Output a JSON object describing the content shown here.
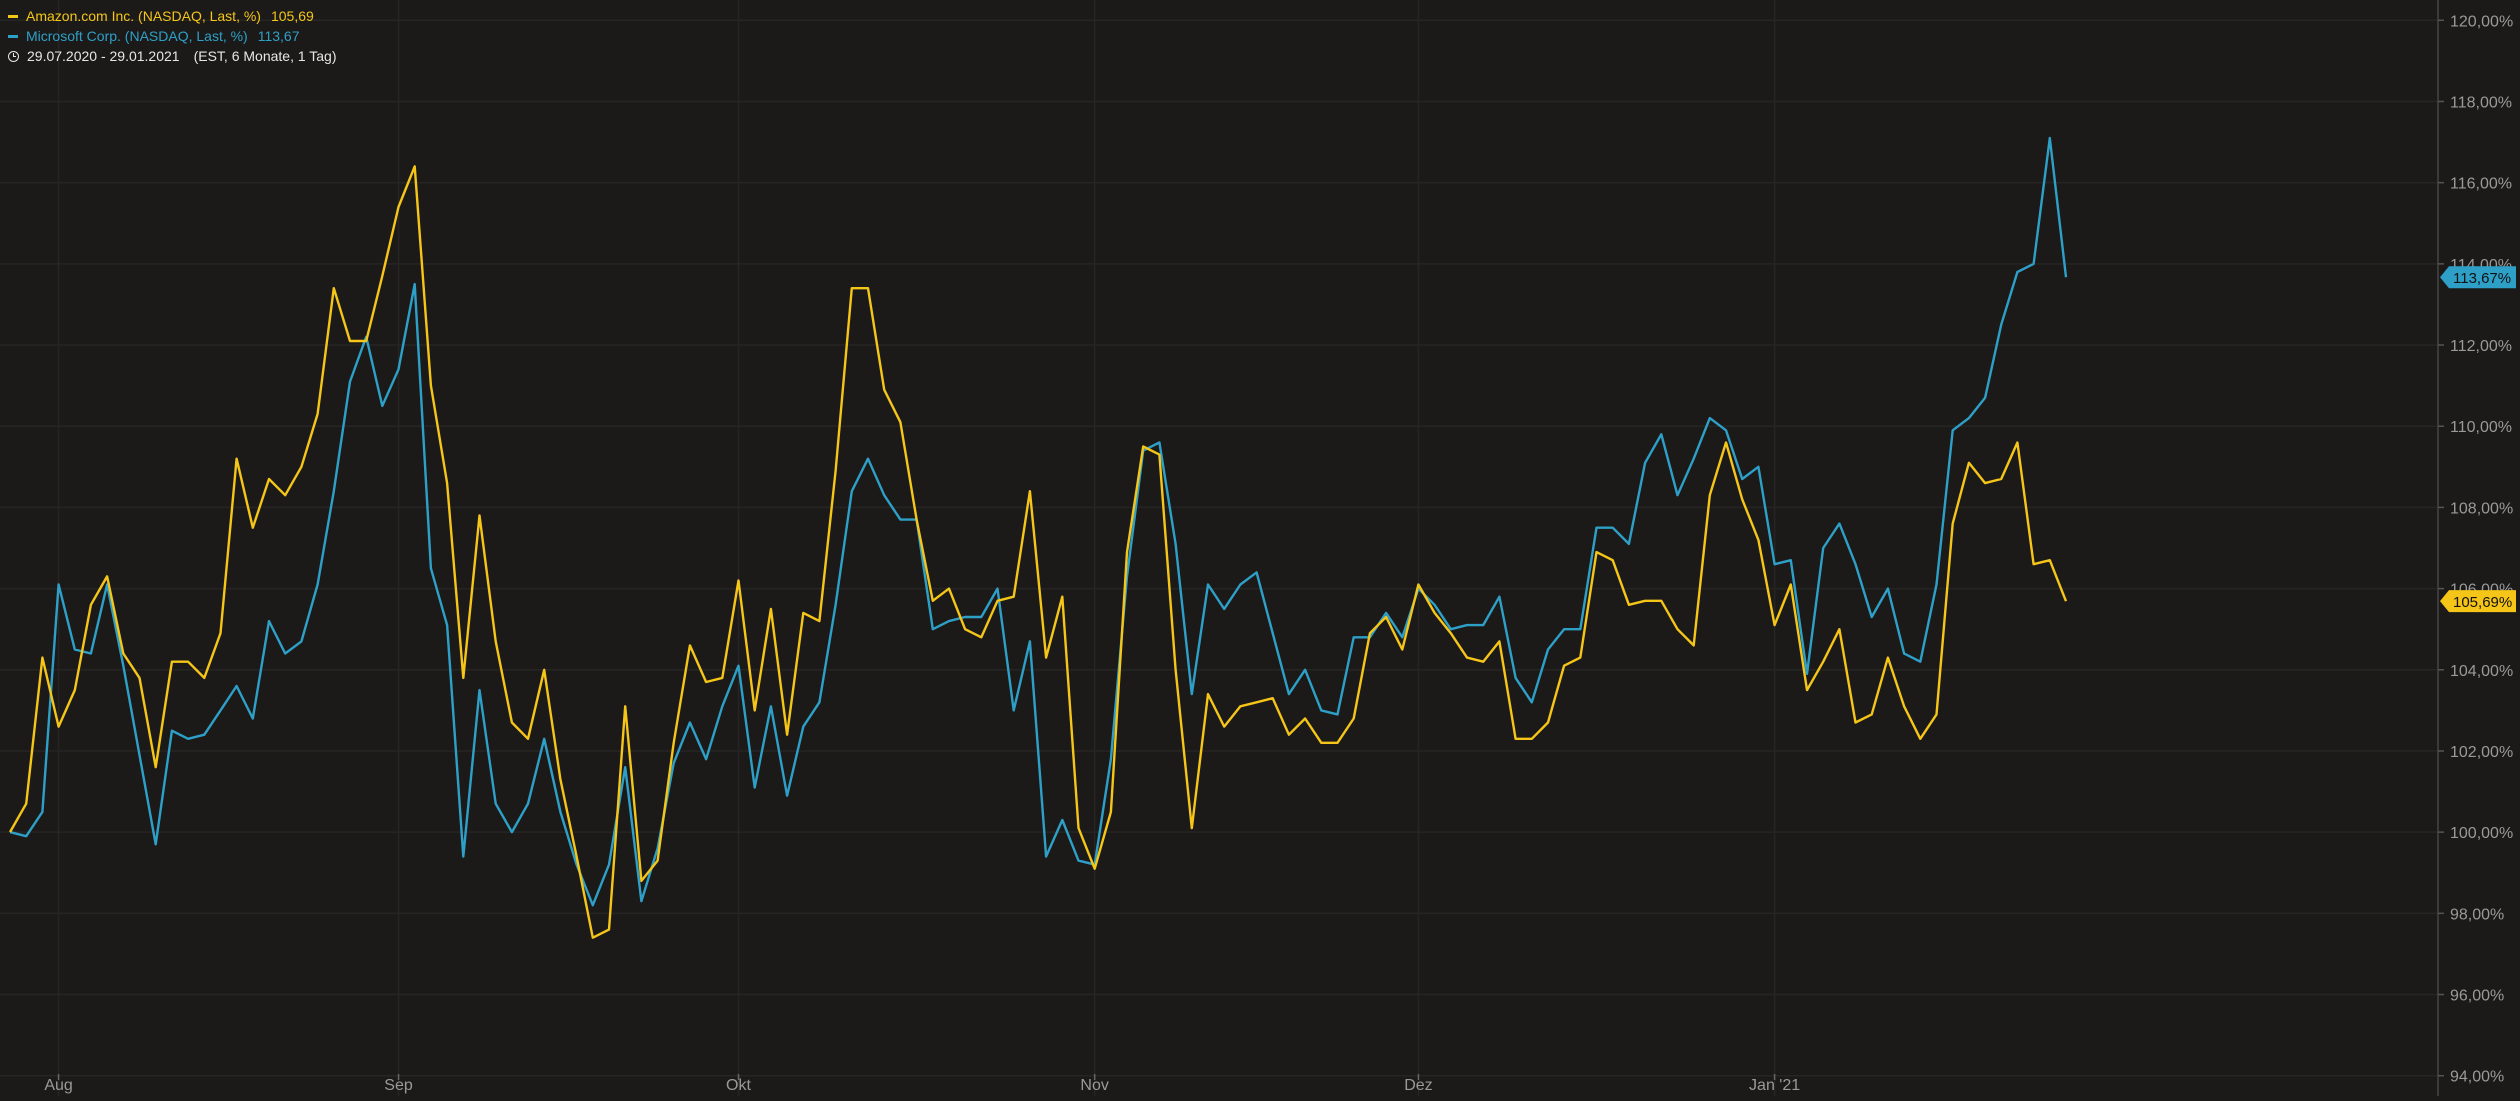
{
  "legend": {
    "series_1": {
      "label": "Amazon.com Inc. (NASDAQ, Last, %)",
      "value": "105,69",
      "color": "#f5c518"
    },
    "series_2": {
      "label": "Microsoft Corp. (NASDAQ, Last, %)",
      "value": "113,67",
      "color": "#2ea0c8"
    },
    "range": "29.07.2020 - 29.01.2021",
    "range_extra": "(EST, 6 Monate, 1 Tag)"
  },
  "chart_data": {
    "type": "line",
    "title": "",
    "xlabel": "",
    "ylabel": "",
    "ylim": [
      93.5,
      120.5
    ],
    "y_ticks": [
      94,
      96,
      98,
      100,
      102,
      104,
      106,
      108,
      110,
      112,
      114,
      116,
      118,
      120
    ],
    "y_tick_labels": [
      "94,00%",
      "96,00%",
      "98,00%",
      "100,00%",
      "102,00%",
      "104,00%",
      "106,00%",
      "108,00%",
      "110,00%",
      "112,00%",
      "114,00%",
      "116,00%",
      "118,00%",
      "120,00%"
    ],
    "x_tick_labels": [
      {
        "label": "Aug",
        "index": 3
      },
      {
        "label": "Sep",
        "index": 24
      },
      {
        "label": "Okt",
        "index": 45
      },
      {
        "label": "Nov",
        "index": 67
      },
      {
        "label": "Dez",
        "index": 87
      },
      {
        "label": "Jan '21",
        "index": 109
      }
    ],
    "grid": true,
    "legend_position": "top-left",
    "last_value_labels": [
      {
        "series": "Microsoft Corp. (NASDAQ, Last, %)",
        "label": "113,67%",
        "value": 113.67
      },
      {
        "series": "Amazon.com Inc. (NASDAQ, Last, %)",
        "label": "105,69%",
        "value": 105.69
      }
    ],
    "series": [
      {
        "name": "Amazon.com Inc. (NASDAQ, Last, %)",
        "color": "#f5c518",
        "values": [
          100.0,
          100.7,
          104.3,
          102.6,
          103.5,
          105.6,
          106.3,
          104.4,
          103.8,
          101.6,
          104.2,
          104.2,
          103.8,
          104.9,
          109.2,
          107.5,
          108.7,
          108.3,
          109.0,
          110.3,
          113.4,
          112.1,
          112.1,
          113.7,
          115.4,
          116.4,
          111.0,
          108.6,
          103.8,
          107.8,
          104.7,
          102.7,
          102.3,
          104.0,
          101.3,
          99.4,
          97.4,
          97.6,
          103.1,
          98.8,
          99.3,
          102.2,
          104.6,
          103.7,
          103.8,
          106.2,
          103.0,
          105.5,
          102.4,
          105.4,
          105.2,
          108.9,
          113.4,
          113.4,
          110.9,
          110.1,
          107.7,
          105.7,
          106.0,
          105.0,
          104.8,
          105.7,
          105.8,
          108.4,
          104.3,
          105.8,
          100.1,
          99.1,
          100.5,
          106.9,
          109.5,
          109.3,
          104.0,
          100.1,
          103.4,
          102.6,
          103.1,
          103.2,
          103.3,
          102.4,
          102.8,
          102.2,
          102.2,
          102.8,
          104.9,
          105.3,
          104.5,
          106.1,
          105.4,
          104.9,
          104.3,
          104.2,
          104.7,
          102.3,
          102.3,
          102.7,
          104.1,
          104.3,
          106.9,
          106.7,
          105.6,
          105.7,
          105.7,
          105.0,
          104.6,
          108.3,
          109.6,
          108.2,
          107.2,
          105.1,
          106.1,
          103.5,
          104.2,
          105.0,
          102.7,
          102.9,
          104.3,
          103.1,
          102.3,
          102.9,
          107.6,
          109.1,
          108.6,
          108.7,
          109.6,
          106.6,
          106.7,
          105.69
        ]
      },
      {
        "name": "Microsoft Corp. (NASDAQ, Last, %)",
        "color": "#2ea0c8",
        "values": [
          100.0,
          99.9,
          100.5,
          106.1,
          104.5,
          104.4,
          106.1,
          104.1,
          101.9,
          99.7,
          102.5,
          102.3,
          102.4,
          103.0,
          103.6,
          102.8,
          105.2,
          104.4,
          104.7,
          106.1,
          108.4,
          111.1,
          112.2,
          110.5,
          111.4,
          113.5,
          106.5,
          105.1,
          99.4,
          103.5,
          100.7,
          100.0,
          100.7,
          102.3,
          100.5,
          99.2,
          98.2,
          99.2,
          101.6,
          98.3,
          99.6,
          101.7,
          102.7,
          101.8,
          103.1,
          104.1,
          101.1,
          103.1,
          100.9,
          102.6,
          103.2,
          105.6,
          108.4,
          109.2,
          108.3,
          107.7,
          107.7,
          105.0,
          105.2,
          105.3,
          105.3,
          106.0,
          103.0,
          104.7,
          99.4,
          100.3,
          99.3,
          99.2,
          101.8,
          106.3,
          109.4,
          109.6,
          107.1,
          103.4,
          106.1,
          105.5,
          106.1,
          106.4,
          104.9,
          103.4,
          104.0,
          103.0,
          102.9,
          104.8,
          104.8,
          105.4,
          104.8,
          106.0,
          105.6,
          105.0,
          105.1,
          105.1,
          105.8,
          103.8,
          103.2,
          104.5,
          105.0,
          105.0,
          107.5,
          107.5,
          107.1,
          109.1,
          109.8,
          108.3,
          109.2,
          110.2,
          109.9,
          108.7,
          109.0,
          106.6,
          106.7,
          103.9,
          107.0,
          107.6,
          106.6,
          105.3,
          106.0,
          104.4,
          104.2,
          106.1,
          109.9,
          110.2,
          110.7,
          112.5,
          113.8,
          114.0,
          117.1,
          113.67
        ]
      }
    ]
  }
}
